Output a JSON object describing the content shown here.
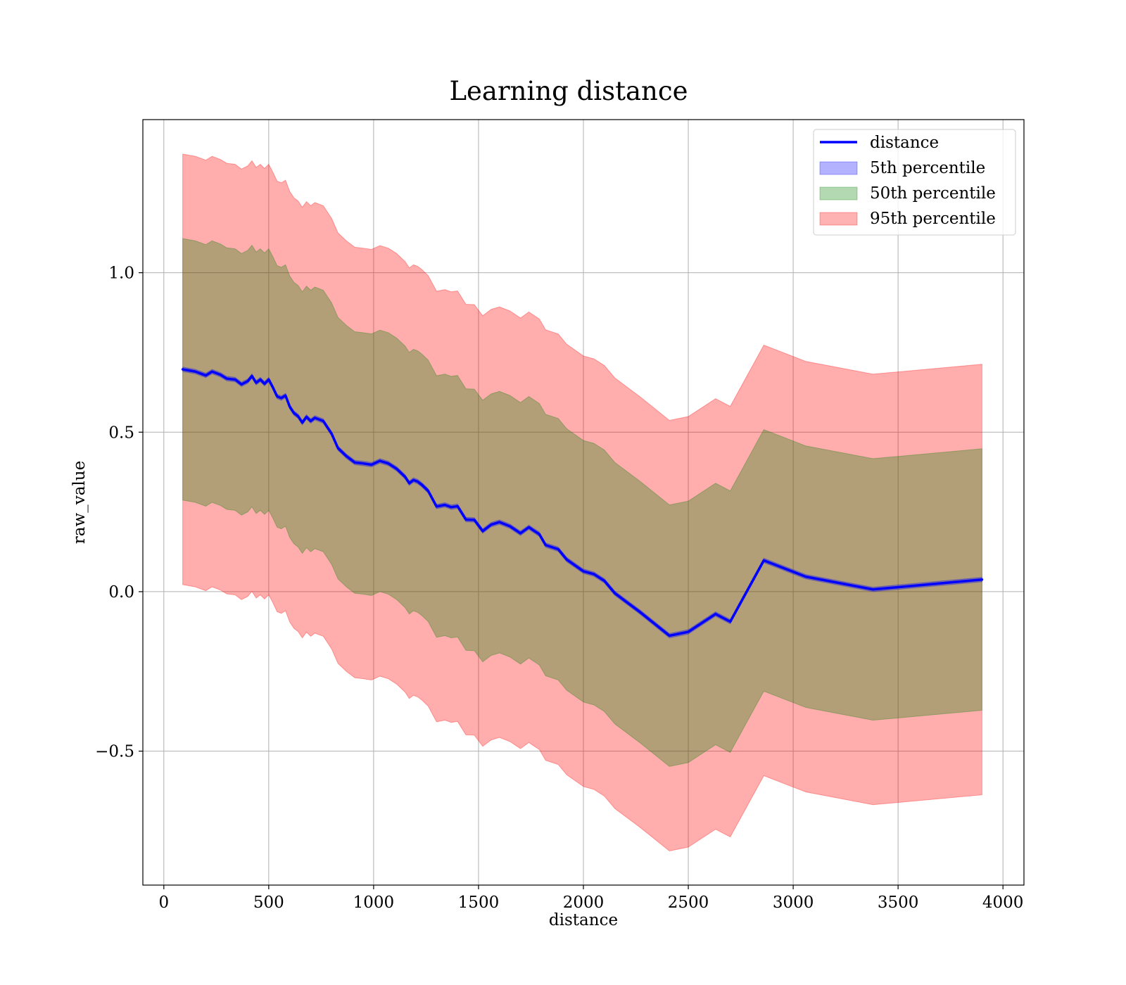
{
  "chart_data": {
    "type": "line",
    "title": "Learning distance",
    "xlabel": "distance",
    "ylabel": "raw_value",
    "xlim": [
      -100,
      4100
    ],
    "ylim": [
      -0.92,
      1.48
    ],
    "grid": true,
    "legend_placement": "top-right",
    "x_ticks": [
      0,
      500,
      1000,
      1500,
      2000,
      2500,
      3000,
      3500,
      4000
    ],
    "x_tick_labels": [
      "0",
      "500",
      "1000",
      "1500",
      "2000",
      "2500",
      "3000",
      "3500",
      "4000"
    ],
    "y_ticks": [
      -0.5,
      0.0,
      0.5,
      1.0
    ],
    "y_tick_labels": [
      "−0.5",
      "0.0",
      "0.5",
      "1.0"
    ],
    "x": [
      90,
      150,
      200,
      230,
      270,
      300,
      340,
      370,
      400,
      420,
      440,
      460,
      480,
      500,
      520,
      540,
      560,
      580,
      600,
      620,
      640,
      660,
      680,
      700,
      720,
      740,
      760,
      800,
      830,
      870,
      910,
      950,
      990,
      1030,
      1070,
      1110,
      1150,
      1170,
      1190,
      1210,
      1230,
      1260,
      1300,
      1340,
      1370,
      1400,
      1440,
      1480,
      1520,
      1560,
      1600,
      1650,
      1700,
      1740,
      1760,
      1790,
      1820,
      1880,
      1920,
      2000,
      2050,
      2100,
      2150,
      2270,
      2410,
      2500,
      2630,
      2700,
      2860,
      3060,
      3380,
      3900
    ],
    "series": [
      {
        "name": "distance",
        "color": "#0000ff",
        "values": [
          0.697,
          0.69,
          0.678,
          0.69,
          0.68,
          0.668,
          0.665,
          0.65,
          0.66,
          0.676,
          0.655,
          0.665,
          0.652,
          0.665,
          0.64,
          0.612,
          0.607,
          0.615,
          0.58,
          0.56,
          0.55,
          0.53,
          0.548,
          0.535,
          0.545,
          0.54,
          0.535,
          0.495,
          0.45,
          0.425,
          0.405,
          0.402,
          0.398,
          0.41,
          0.402,
          0.385,
          0.36,
          0.34,
          0.35,
          0.345,
          0.335,
          0.316,
          0.267,
          0.272,
          0.265,
          0.268,
          0.226,
          0.225,
          0.19,
          0.21,
          0.218,
          0.205,
          0.183,
          0.202,
          0.193,
          0.18,
          0.146,
          0.133,
          0.101,
          0.064,
          0.055,
          0.034,
          -0.005,
          -0.064,
          -0.138,
          -0.126,
          -0.07,
          -0.094,
          0.098,
          0.047,
          0.007,
          0.038
        ]
      }
    ],
    "bands": [
      {
        "name": "5th percentile",
        "color": "#0000ff",
        "opacity": 0.3,
        "lower_offset": -0.007,
        "upper_offset": 0.007
      },
      {
        "name": "50th percentile",
        "color": "#008000",
        "opacity": 0.3,
        "lower_offset": -0.41,
        "upper_offset": 0.41
      },
      {
        "name": "95th percentile",
        "color": "#ff0000",
        "opacity": 0.32,
        "lower_offset": -0.675,
        "upper_offset": 0.675
      }
    ],
    "legend": [
      "distance",
      "5th percentile",
      "50th percentile",
      "95th percentile"
    ]
  }
}
